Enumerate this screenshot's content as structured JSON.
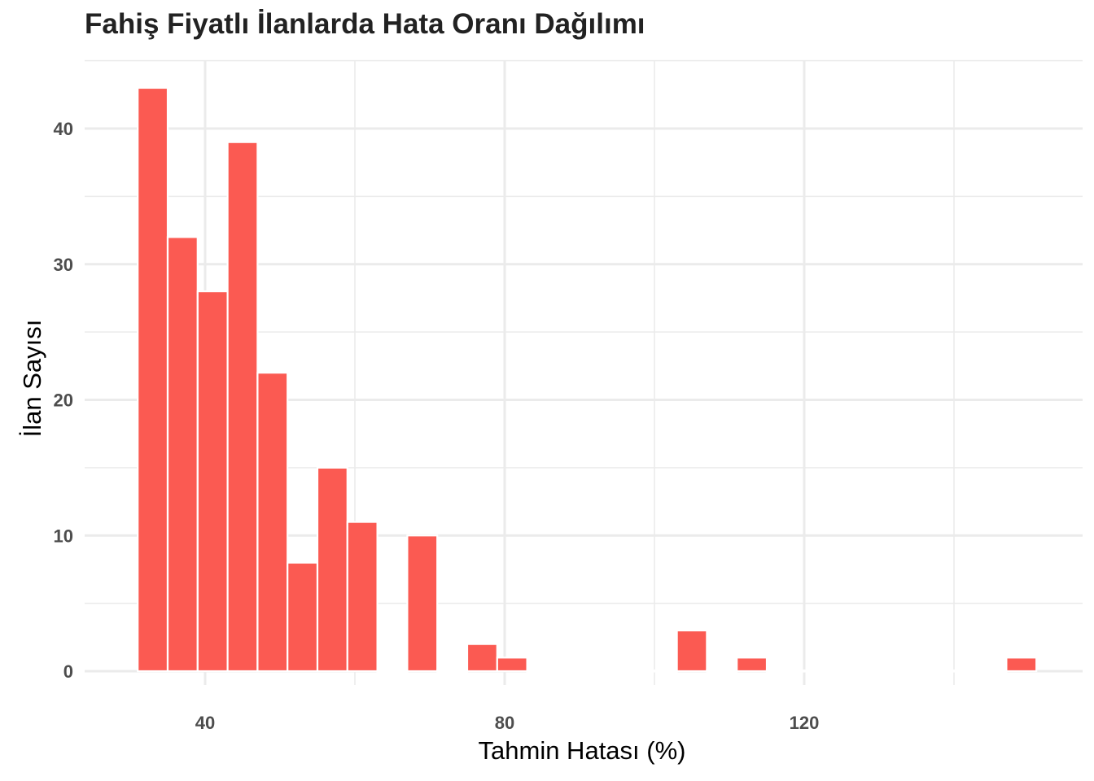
{
  "chart_data": {
    "type": "bar",
    "title": "Fahiş Fiyatlı İlanlarda Hata Oranı Dağılımı",
    "xlabel": "Tahmin Hatası (%)",
    "ylabel": "İlan Sayısı",
    "bar_color": "#FB5A52",
    "grid_color": "#EBEBEB",
    "xlim": [
      24,
      155
    ],
    "ylim": [
      0,
      45
    ],
    "x_ticks": [
      40,
      80,
      120
    ],
    "y_ticks": [
      0,
      10,
      20,
      30,
      40
    ],
    "grid": true,
    "bin_width": 4,
    "bins": [
      {
        "x": 33,
        "count": 43
      },
      {
        "x": 37,
        "count": 32
      },
      {
        "x": 41,
        "count": 28
      },
      {
        "x": 45,
        "count": 39
      },
      {
        "x": 49,
        "count": 22
      },
      {
        "x": 53,
        "count": 8
      },
      {
        "x": 57,
        "count": 15
      },
      {
        "x": 61,
        "count": 11
      },
      {
        "x": 65,
        "count": 0
      },
      {
        "x": 69,
        "count": 10
      },
      {
        "x": 73,
        "count": 0
      },
      {
        "x": 77,
        "count": 2
      },
      {
        "x": 81,
        "count": 1
      },
      {
        "x": 85,
        "count": 0
      },
      {
        "x": 89,
        "count": 0
      },
      {
        "x": 93,
        "count": 0
      },
      {
        "x": 97,
        "count": 0
      },
      {
        "x": 101,
        "count": 0
      },
      {
        "x": 105,
        "count": 3
      },
      {
        "x": 109,
        "count": 0
      },
      {
        "x": 113,
        "count": 1
      },
      {
        "x": 117,
        "count": 0
      },
      {
        "x": 121,
        "count": 0
      },
      {
        "x": 125,
        "count": 0
      },
      {
        "x": 129,
        "count": 0
      },
      {
        "x": 133,
        "count": 0
      },
      {
        "x": 137,
        "count": 0
      },
      {
        "x": 141,
        "count": 0
      },
      {
        "x": 145,
        "count": 0
      },
      {
        "x": 149,
        "count": 1
      }
    ]
  }
}
